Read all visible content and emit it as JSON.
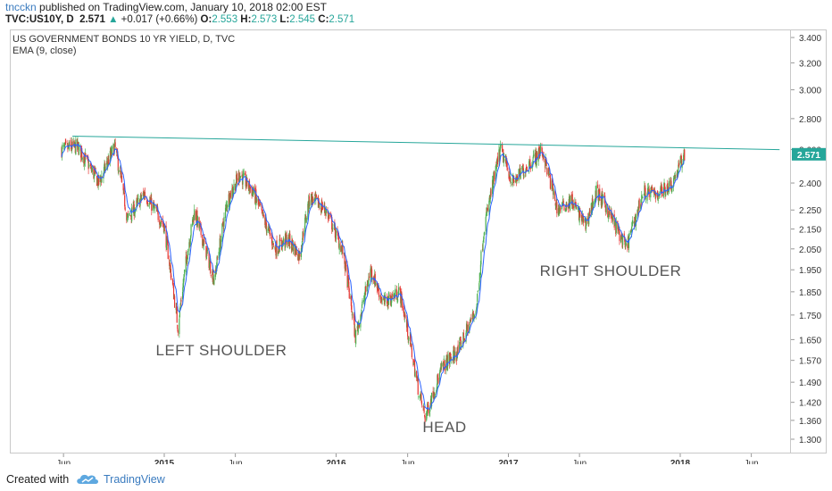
{
  "header": {
    "user": "tncckn",
    "published": " published on TradingView.com, January 10, 2018 02:00 EST"
  },
  "quote": {
    "symbol": "TVC:US10Y, D",
    "last": "2.571",
    "change": "+0.017 (+0.66%)",
    "o_label": "O:",
    "o": "2.553",
    "h_label": "H:",
    "h": "2.573",
    "l_label": "L:",
    "l": "2.545",
    "c_label": "C:",
    "c": "2.571"
  },
  "footer": {
    "created": "Created with",
    "brand": "TradingView"
  },
  "colors": {
    "up": "#4caf50",
    "down": "#e53935",
    "ema": "#2962ff",
    "trend": "#26a69a",
    "price_tag": "#26a69a"
  },
  "chart_data": {
    "type": "line",
    "title": "US GOVERNMENT BONDS 10 YR YIELD, D, TVC",
    "indicator": "EMA (9, close)",
    "x_ticks": [
      "Jun",
      "2015",
      "Jun",
      "2016",
      "Jun",
      "2017",
      "Jun",
      "2018",
      "Jun"
    ],
    "y_ticks": [
      "3.400",
      "3.200",
      "3.000",
      "2.800",
      "2.600",
      "2.400",
      "2.250",
      "2.150",
      "2.050",
      "1.950",
      "1.850",
      "1.750",
      "1.650",
      "1.570",
      "1.490",
      "1.420",
      "1.360",
      "1.300"
    ],
    "y_scale": "log",
    "ylim": [
      1.25,
      3.45
    ],
    "last_price_label": "2.571",
    "series": [
      {
        "x": [
          "2014-05-28",
          "2014-07-01",
          "2014-08-15",
          "2014-09-18",
          "2014-10-15",
          "2014-11-20",
          "2014-12-31",
          "2015-01-30",
          "2015-02-20",
          "2015-03-06",
          "2015-04-17",
          "2015-05-15",
          "2015-06-10",
          "2015-07-08",
          "2015-08-24",
          "2015-09-20",
          "2015-10-15",
          "2015-11-06",
          "2015-12-10",
          "2016-01-15",
          "2016-02-11",
          "2016-03-15",
          "2016-04-10",
          "2016-05-15",
          "2016-06-24",
          "2016-07-08",
          "2016-08-15",
          "2016-09-15",
          "2016-10-25",
          "2016-11-10",
          "2016-12-15",
          "2017-01-10",
          "2017-03-13",
          "2017-04-15",
          "2017-05-15",
          "2017-06-14",
          "2017-07-07",
          "2017-07-25",
          "2017-09-08",
          "2017-10-15",
          "2017-11-15",
          "2017-12-15",
          "2018-01-10"
        ],
        "y": [
          2.6,
          2.62,
          2.4,
          2.62,
          2.2,
          2.34,
          2.17,
          1.7,
          2.05,
          2.24,
          1.9,
          2.3,
          2.45,
          2.35,
          2.05,
          2.1,
          2.02,
          2.32,
          2.25,
          2.04,
          1.66,
          1.95,
          1.8,
          1.85,
          1.46,
          1.37,
          1.55,
          1.6,
          1.78,
          2.15,
          2.6,
          2.4,
          2.6,
          2.25,
          2.3,
          2.17,
          2.35,
          2.28,
          2.05,
          2.35,
          2.34,
          2.4,
          2.571
        ]
      }
    ],
    "trendline": {
      "x": [
        "2014-06-20",
        "2018-07-31"
      ],
      "y": [
        2.685,
        2.6
      ]
    },
    "annotations": [
      "LEFT SHOULDER",
      "HEAD",
      "RIGHT SHOULDER"
    ]
  }
}
